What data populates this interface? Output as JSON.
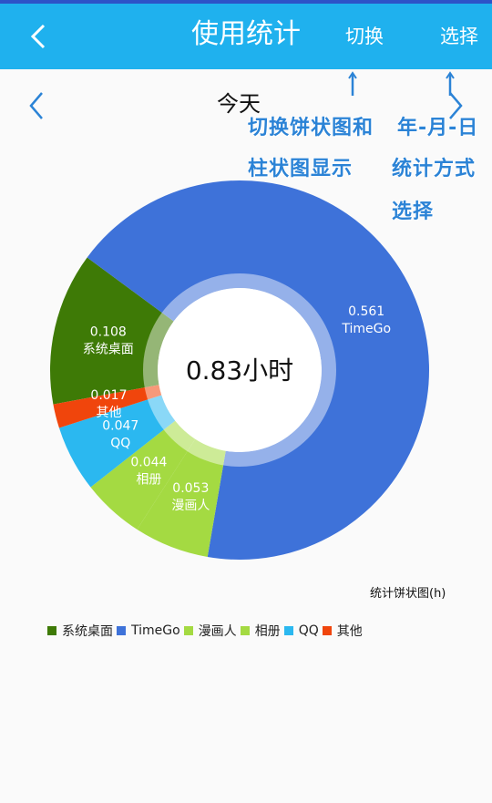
{
  "appbar": {
    "title": "使用统计",
    "switch_label": "切换",
    "select_label": "选择"
  },
  "day": {
    "label": "今天"
  },
  "annotations": {
    "switch_note_line1": "切换饼状图和",
    "switch_note_line2": "柱状图显示",
    "select_note_line1": "年-月-日",
    "select_note_line2": "统计方式",
    "select_note_line3": "选择"
  },
  "chart_data": {
    "type": "pie",
    "donut": true,
    "center_label": "0.83小时",
    "caption": "统计饼状图(h)",
    "legend_position": "bottom-left",
    "series": [
      {
        "name": "系统桌面",
        "value": 0.108,
        "color": "#3e7a06"
      },
      {
        "name": "TimeGo",
        "value": 0.561,
        "color": "#3e72d9"
      },
      {
        "name": "漫画人",
        "value": 0.053,
        "color": "#a4da42"
      },
      {
        "name": "相册",
        "value": 0.044,
        "color": "#a4da42"
      },
      {
        "name": "QQ",
        "value": 0.047,
        "color": "#2bb8f0"
      },
      {
        "name": "其他",
        "value": 0.017,
        "color": "#f0450c"
      }
    ]
  }
}
